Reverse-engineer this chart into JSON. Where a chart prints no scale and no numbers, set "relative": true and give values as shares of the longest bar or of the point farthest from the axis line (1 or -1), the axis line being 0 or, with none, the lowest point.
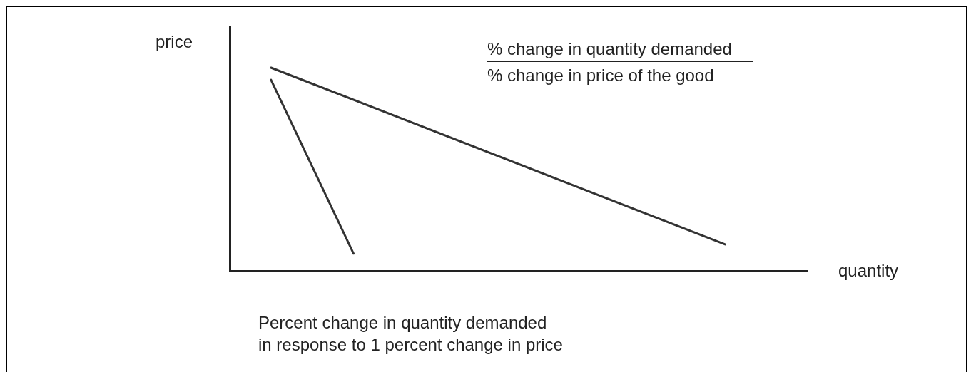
{
  "chart_data": {
    "type": "line",
    "relative": true,
    "ylabel": "price",
    "xlabel": "quantity",
    "categories": [
      null,
      null,
      null,
      null,
      null,
      null,
      null,
      null,
      null,
      null,
      null,
      null,
      null,
      null,
      null
    ],
    "series": [
      {
        "color": "#333333",
        "values": [
          null,
          0.94,
          null,
          0.085,
          null,
          null,
          null,
          null,
          null,
          null,
          null,
          null,
          null,
          null,
          null
        ]
      },
      {
        "color": "#333333",
        "values": [
          null,
          1,
          null,
          null,
          null,
          null,
          null,
          null,
          null,
          null,
          null,
          null,
          0.13,
          null,
          null
        ]
      }
    ],
    "annotations": [
      "% change in quantity demanded",
      "% change in price of the good",
      "Percent change in quantity demanded",
      "in response to 1 percent change in price"
    ],
    "legend": false,
    "grid": false,
    "tick_labels": false,
    "marker": "none"
  }
}
